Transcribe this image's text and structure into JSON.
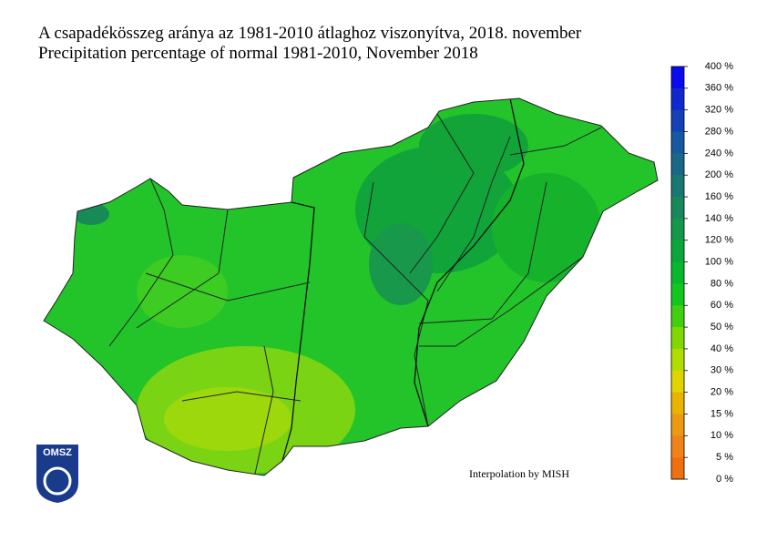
{
  "header": {
    "title_hu": "A csapadékösszeg aránya az 1981-2010 átlaghoz viszonyítva, 2018. november",
    "title_en": "Precipitation percentage of normal 1981-2010, November 2018"
  },
  "legend": {
    "labels": [
      "400 %",
      "360 %",
      "320 %",
      "280 %",
      "240 %",
      "200 %",
      "160 %",
      "140 %",
      "120 %",
      "100 %",
      "80 %",
      "60 %",
      "50 %",
      "40 %",
      "30 %",
      "20 %",
      "15 %",
      "10 %",
      "5 %",
      "0 %"
    ],
    "colors": [
      "#0a0af0",
      "#1028d0",
      "#1440b8",
      "#1858a0",
      "#1a6888",
      "#1a7872",
      "#18885c",
      "#12984a",
      "#0aa83a",
      "#06b82a",
      "#12c820",
      "#40d010",
      "#80d800",
      "#b0dc00",
      "#e0d400",
      "#e8b400",
      "#ec9a10",
      "#f08218",
      "#f07010"
    ]
  },
  "credit": "Interpolation by MISH",
  "logo": "OMSZ"
}
